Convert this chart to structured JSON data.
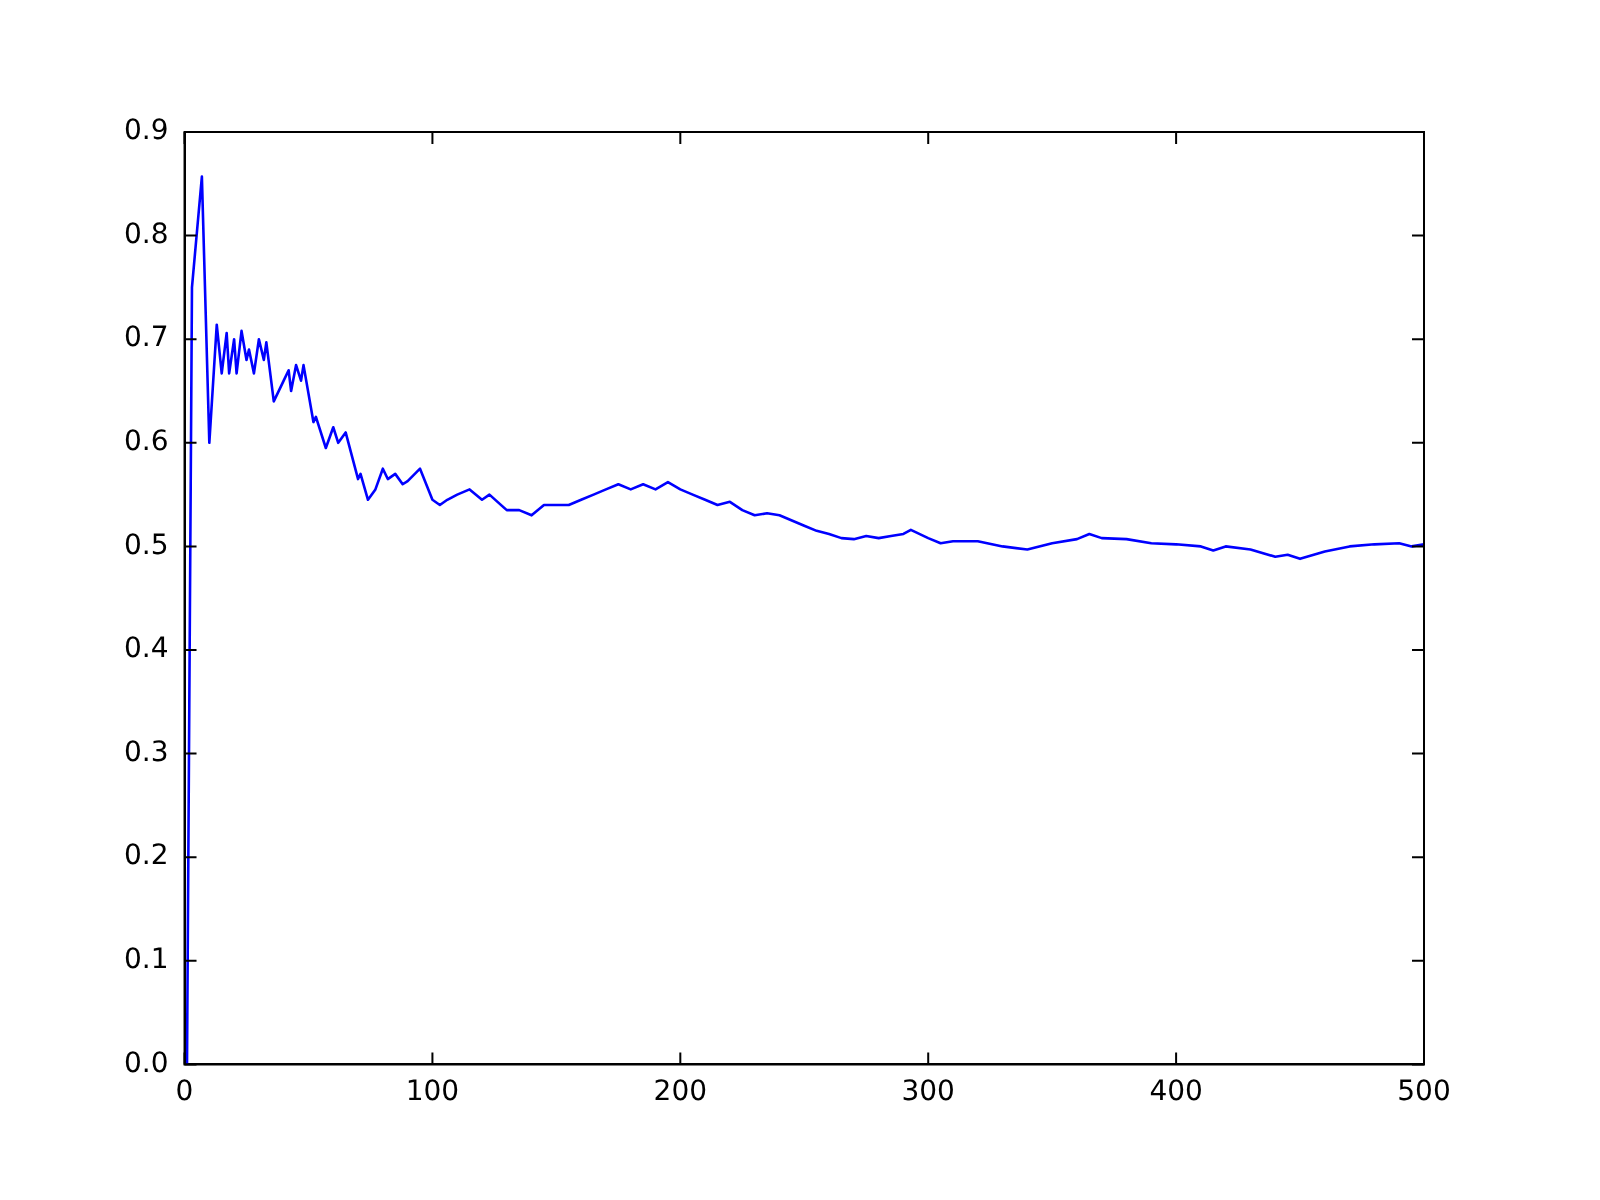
{
  "chart_data": {
    "type": "line",
    "x": [
      1,
      3,
      7,
      10,
      13,
      15,
      17,
      18,
      20,
      21,
      23,
      25,
      26,
      28,
      30,
      32,
      33,
      36,
      40,
      42,
      43,
      45,
      47,
      48,
      52,
      53,
      57,
      60,
      62,
      65,
      70,
      71,
      74,
      77,
      80,
      82,
      85,
      88,
      90,
      95,
      100,
      103,
      106,
      110,
      115,
      120,
      123,
      130,
      135,
      140,
      145,
      150,
      155,
      160,
      165,
      170,
      175,
      180,
      185,
      190,
      195,
      200,
      205,
      210,
      215,
      220,
      225,
      230,
      235,
      240,
      245,
      250,
      255,
      260,
      265,
      270,
      275,
      280,
      285,
      290,
      293,
      300,
      305,
      310,
      320,
      330,
      340,
      350,
      360,
      365,
      370,
      380,
      390,
      400,
      410,
      415,
      420,
      430,
      440,
      445,
      450,
      460,
      470,
      480,
      490,
      495,
      500
    ],
    "series": [
      {
        "color": "#0000ff",
        "values": [
          0,
          0.75,
          0.857,
          0.6,
          0.714,
          0.667,
          0.706,
          0.667,
          0.7,
          0.667,
          0.708,
          0.68,
          0.69,
          0.667,
          0.7,
          0.68,
          0.697,
          0.64,
          0.66,
          0.67,
          0.65,
          0.675,
          0.66,
          0.675,
          0.62,
          0.625,
          0.595,
          0.615,
          0.6,
          0.61,
          0.565,
          0.57,
          0.545,
          0.555,
          0.575,
          0.565,
          0.57,
          0.56,
          0.563,
          0.575,
          0.545,
          0.54,
          0.545,
          0.55,
          0.555,
          0.545,
          0.55,
          0.535,
          0.535,
          0.53,
          0.54,
          0.54,
          0.54,
          0.545,
          0.55,
          0.555,
          0.56,
          0.555,
          0.56,
          0.555,
          0.562,
          0.555,
          0.55,
          0.545,
          0.54,
          0.543,
          0.535,
          0.53,
          0.532,
          0.53,
          0.525,
          0.52,
          0.515,
          0.512,
          0.508,
          0.507,
          0.51,
          0.508,
          0.51,
          0.512,
          0.516,
          0.508,
          0.503,
          0.505,
          0.505,
          0.5,
          0.497,
          0.503,
          0.507,
          0.512,
          0.508,
          0.507,
          0.503,
          0.502,
          0.5,
          0.496,
          0.5,
          0.497,
          0.49,
          0.492,
          0.488,
          0.495,
          0.5,
          0.502,
          0.503,
          0.5,
          0.502
        ]
      }
    ],
    "xlim": [
      0,
      500
    ],
    "xticks": [
      0,
      100,
      200,
      300,
      400,
      500
    ],
    "ylim": [
      0,
      0.9
    ],
    "yticks": [
      {
        "value": 0,
        "label": "0.0"
      },
      0.1,
      0.2,
      0.3,
      0.4,
      0.5,
      0.6,
      0.7,
      0.8,
      0.9
    ],
    "grid": false,
    "legend": false,
    "marker": "none",
    "line_style": "solid"
  }
}
